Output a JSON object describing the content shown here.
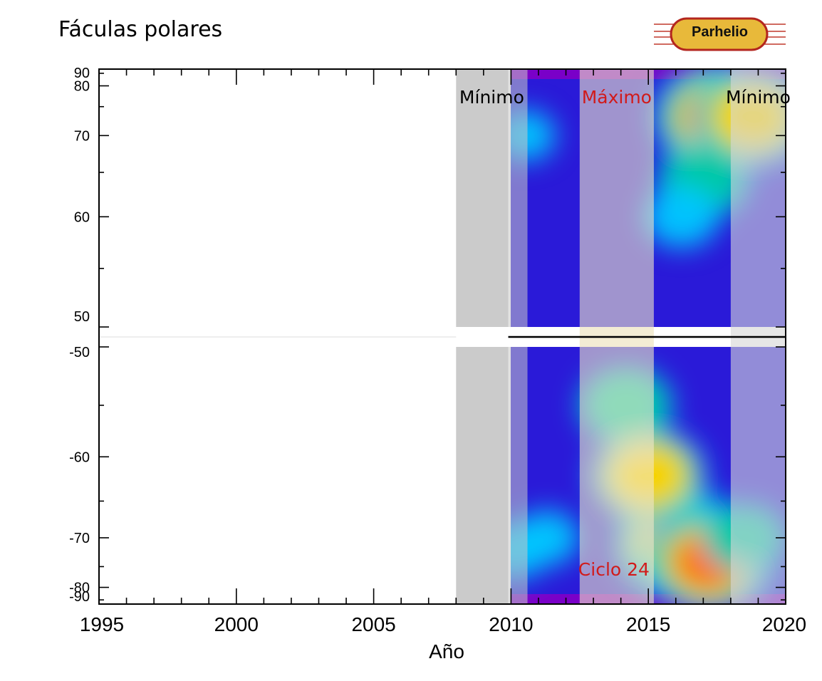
{
  "title": "Fáculas polares",
  "logo": {
    "text": "Parhelio",
    "colors": {
      "fill": "#e8b93a",
      "border": "#b3261e",
      "lines": "#c0392b"
    }
  },
  "chart_data": {
    "type": "heatmap",
    "title": "Fáculas polares",
    "xlabel": "Año",
    "ylabel": "",
    "xlim": [
      1995,
      2020
    ],
    "x_ticks": [
      "1995",
      "2000",
      "2005",
      "2010",
      "2015",
      "2020"
    ],
    "y_ticks_north": [
      "90",
      "80",
      "70",
      "60",
      "50"
    ],
    "y_ticks_south": [
      "-50",
      "-60",
      "-70",
      "-80",
      "-90"
    ],
    "y_axis_break": [
      -50,
      50
    ],
    "data_range_x": [
      2009.9,
      2020
    ],
    "phases": [
      {
        "label": "Mínimo",
        "start": 2008.0,
        "end": 2010.6,
        "color": "#9e9e9e",
        "label_color": "#000000"
      },
      {
        "label": "Máximo",
        "start": 2012.5,
        "end": 2015.2,
        "color": "#f0e6c8",
        "label_color": "#d11a1a"
      },
      {
        "label": "Mínimo",
        "start": 2018.0,
        "end": 2020.0,
        "color": "#d8d8d8",
        "label_color": "#000000"
      }
    ],
    "cycle_label": {
      "text": "Ciclo 24",
      "x": 2012.5,
      "lat": -80,
      "color": "#d11a1a"
    },
    "hemispheres": [
      {
        "name": "north",
        "blobs": [
          {
            "x": 2017.6,
            "lat": 73,
            "intensity": 1.0
          },
          {
            "x": 2018.8,
            "lat": 73,
            "intensity": 0.85
          },
          {
            "x": 2017.0,
            "lat": 64,
            "intensity": 0.55
          },
          {
            "x": 2016.2,
            "lat": 60,
            "intensity": 0.35
          },
          {
            "x": 2010.5,
            "lat": 70,
            "intensity": 0.2
          }
        ]
      },
      {
        "name": "south",
        "blobs": [
          {
            "x": 2016.2,
            "lat": -71,
            "intensity": 1.0
          },
          {
            "x": 2017.2,
            "lat": -74,
            "intensity": 0.95
          },
          {
            "x": 2015.0,
            "lat": -62,
            "intensity": 0.8
          },
          {
            "x": 2014.2,
            "lat": -55,
            "intensity": 0.55
          },
          {
            "x": 2018.5,
            "lat": -70,
            "intensity": 0.45
          },
          {
            "x": 2011.3,
            "lat": -70,
            "intensity": 0.25
          },
          {
            "x": 2010.1,
            "lat": -72,
            "intensity": 0.3
          }
        ]
      }
    ]
  }
}
